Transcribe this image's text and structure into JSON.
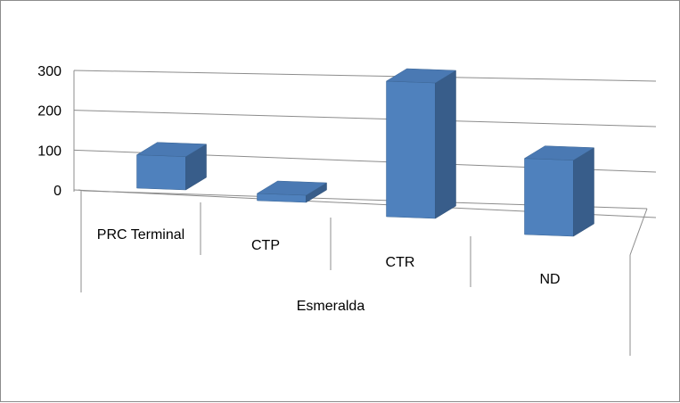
{
  "chart_data": {
    "type": "bar",
    "title": "",
    "xlabel": "",
    "ylabel": "",
    "group_label": "Esmeralda",
    "categories": [
      "PRC Terminal",
      "CTP",
      "CTR",
      "ND"
    ],
    "values": [
      70,
      15,
      285,
      160
    ],
    "ylim": [
      0,
      300
    ],
    "yticks": [
      0,
      100,
      200,
      300
    ],
    "grid": true,
    "legend": "none",
    "bar_color": "#4f81bd"
  }
}
